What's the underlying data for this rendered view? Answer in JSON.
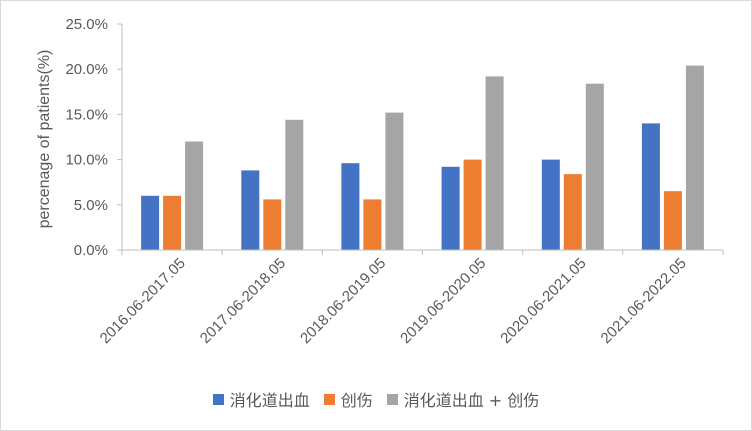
{
  "chart_data": {
    "type": "bar",
    "ylabel": "percenage of patients(%)",
    "ylim": [
      0,
      25
    ],
    "yticks": [
      "0.0%",
      "5.0%",
      "10.0%",
      "15.0%",
      "20.0%",
      "25.0%"
    ],
    "categories": [
      "2016.06-2017.05",
      "2017.06-2018.05",
      "2018.06-2019.05",
      "2019.06-2020.05",
      "2020.06-2021.05",
      "2021.06-2022.05"
    ],
    "series": [
      {
        "name": "消化道出血",
        "color": "#4472c4",
        "values": [
          6.0,
          8.8,
          9.6,
          9.2,
          10.0,
          14.0
        ]
      },
      {
        "name": "创伤",
        "color": "#ed7d31",
        "values": [
          6.0,
          5.6,
          5.6,
          10.0,
          8.4,
          6.5
        ]
      },
      {
        "name": "消化道出血 + 创伤",
        "color": "#a5a5a5",
        "values": [
          12.0,
          14.4,
          15.2,
          19.2,
          18.4,
          20.4
        ]
      }
    ],
    "grid": false,
    "legend_position": "bottom"
  }
}
